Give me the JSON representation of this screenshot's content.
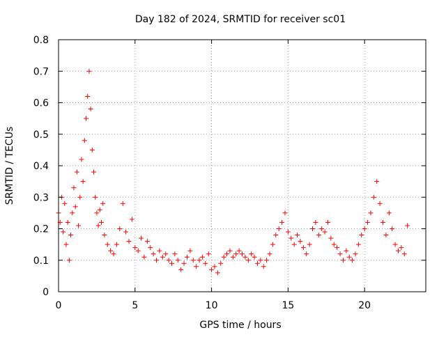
{
  "chart_data": {
    "type": "scatter",
    "title": "Day 182 of 2024, SRMTID for receiver sc01",
    "xlabel": "GPS time / hours",
    "ylabel": "SRMTID / TECUs",
    "xlim": [
      0,
      24
    ],
    "ylim": [
      0,
      0.8
    ],
    "xticks": [
      0,
      5,
      10,
      15,
      20
    ],
    "xtick_labels": [
      "0",
      "5",
      "10",
      "15",
      "20"
    ],
    "yticks": [
      0,
      0.1,
      0.2,
      0.3,
      0.4,
      0.5,
      0.6,
      0.7,
      0.8
    ],
    "ytick_labels": [
      "0",
      "0.1",
      "0.2",
      "0.3",
      "0.4",
      "0.5",
      "0.6",
      "0.7",
      "0.8"
    ],
    "grid": true,
    "marker": "plus",
    "color": "#ff0000",
    "series": [
      {
        "name": "SRMTID",
        "x": [
          0.0,
          0.1,
          0.2,
          0.3,
          0.4,
          0.5,
          0.6,
          0.7,
          0.8,
          0.9,
          1.0,
          1.1,
          1.2,
          1.3,
          1.4,
          1.5,
          1.6,
          1.7,
          1.8,
          1.9,
          2.0,
          2.1,
          2.2,
          2.3,
          2.4,
          2.5,
          2.6,
          2.7,
          2.8,
          2.9,
          3.0,
          3.2,
          3.4,
          3.6,
          3.8,
          4.0,
          4.2,
          4.4,
          4.6,
          4.8,
          5.0,
          5.2,
          5.4,
          5.6,
          5.8,
          6.0,
          6.2,
          6.4,
          6.6,
          6.8,
          7.0,
          7.2,
          7.4,
          7.6,
          7.8,
          8.0,
          8.2,
          8.4,
          8.6,
          8.8,
          9.0,
          9.2,
          9.4,
          9.6,
          9.8,
          10.0,
          10.2,
          10.4,
          10.6,
          10.8,
          11.0,
          11.2,
          11.4,
          11.6,
          11.8,
          12.0,
          12.2,
          12.4,
          12.6,
          12.8,
          13.0,
          13.2,
          13.4,
          13.6,
          13.8,
          14.0,
          14.2,
          14.4,
          14.6,
          14.8,
          15.0,
          15.2,
          15.4,
          15.6,
          15.8,
          16.0,
          16.2,
          16.4,
          16.6,
          16.8,
          17.0,
          17.2,
          17.4,
          17.6,
          17.8,
          18.0,
          18.2,
          18.4,
          18.6,
          18.8,
          19.0,
          19.2,
          19.4,
          19.6,
          19.8,
          20.0,
          20.2,
          20.4,
          20.6,
          20.8,
          21.0,
          21.2,
          21.4,
          21.6,
          21.8,
          22.0,
          22.2,
          22.4,
          22.6,
          22.8
        ],
        "y": [
          0.25,
          0.22,
          0.3,
          0.19,
          0.28,
          0.15,
          0.22,
          0.1,
          0.18,
          0.25,
          0.33,
          0.27,
          0.38,
          0.21,
          0.3,
          0.42,
          0.35,
          0.48,
          0.55,
          0.62,
          0.7,
          0.58,
          0.45,
          0.38,
          0.3,
          0.25,
          0.21,
          0.26,
          0.22,
          0.28,
          0.18,
          0.15,
          0.13,
          0.12,
          0.15,
          0.2,
          0.28,
          0.19,
          0.16,
          0.23,
          0.14,
          0.13,
          0.17,
          0.11,
          0.16,
          0.14,
          0.12,
          0.1,
          0.13,
          0.11,
          0.12,
          0.1,
          0.09,
          0.12,
          0.1,
          0.07,
          0.09,
          0.11,
          0.13,
          0.1,
          0.08,
          0.1,
          0.11,
          0.09,
          0.12,
          0.07,
          0.08,
          0.06,
          0.09,
          0.11,
          0.12,
          0.13,
          0.11,
          0.12,
          0.13,
          0.12,
          0.11,
          0.1,
          0.12,
          0.11,
          0.09,
          0.1,
          0.08,
          0.1,
          0.12,
          0.15,
          0.18,
          0.2,
          0.22,
          0.25,
          0.19,
          0.17,
          0.15,
          0.18,
          0.16,
          0.14,
          0.12,
          0.15,
          0.2,
          0.22,
          0.18,
          0.2,
          0.19,
          0.22,
          0.17,
          0.15,
          0.14,
          0.12,
          0.1,
          0.13,
          0.11,
          0.1,
          0.12,
          0.15,
          0.18,
          0.2,
          0.22,
          0.25,
          0.3,
          0.35,
          0.28,
          0.22,
          0.18,
          0.25,
          0.2,
          0.15,
          0.13,
          0.14,
          0.12,
          0.21
        ]
      }
    ]
  }
}
